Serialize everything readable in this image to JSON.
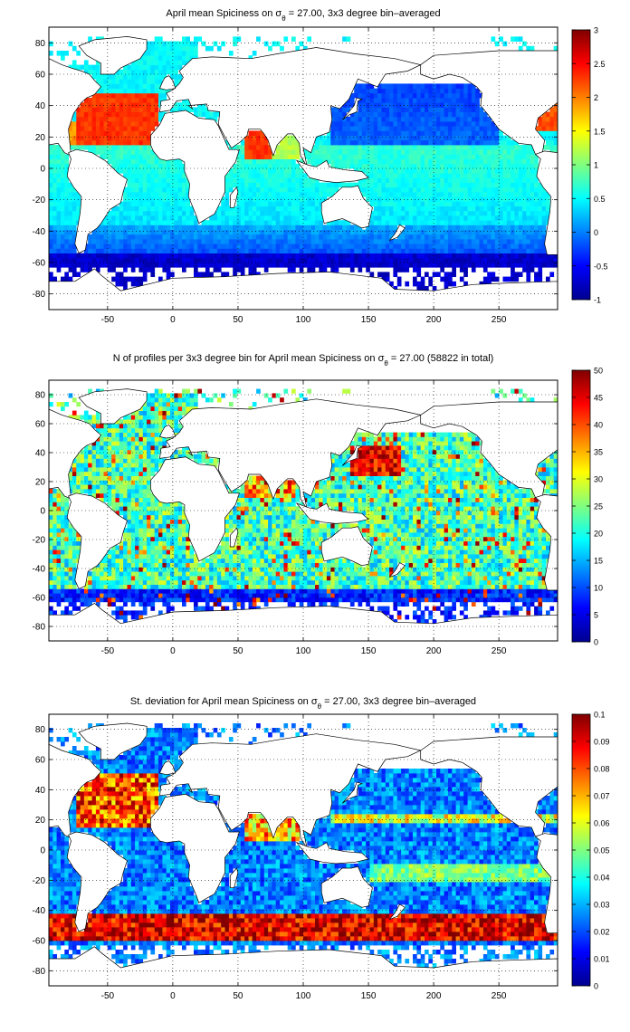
{
  "figure": {
    "background": "#ffffff",
    "land_color": "#ffffff",
    "coast_color": "#000000"
  },
  "chart_data": [
    {
      "type": "heatmap",
      "title_prefix": "April mean Spiciness on σ",
      "title_sub": "θ",
      "title_suffix": " = 27.00, 3x3 degree bin–averaged",
      "xlim": [
        -95,
        295
      ],
      "ylim": [
        -90,
        90
      ],
      "xticks": [
        -50,
        0,
        50,
        100,
        150,
        200,
        250
      ],
      "yticks": [
        -80,
        -60,
        -40,
        -20,
        0,
        20,
        40,
        60,
        80
      ],
      "grid": true,
      "grid_style": "dotted",
      "bin_deg": 3,
      "colormap": "jet",
      "clim": [
        -1,
        3
      ],
      "colorbar_ticks": [
        -1,
        -0.5,
        0,
        0.5,
        1,
        1.5,
        2,
        2.5,
        3
      ],
      "field": "spiciness_mean",
      "qualitative_pattern": "North Atlantic subtropical gyre ~2-2.6 (orange-red); Arabian Sea/Red Sea outflow ~2.2-2.5; North Pacific ~-0.2 to 0; tropics ~0.4-0.8; Southern Ocean south of 55S ~-0.6 to -0.9"
    },
    {
      "type": "heatmap",
      "title_prefix": "N of profiles per 3x3 degree bin for April mean Spiciness on σ",
      "title_sub": "θ",
      "title_suffix": " = 27.00 (58822 in total)",
      "xlim": [
        -95,
        295
      ],
      "ylim": [
        -90,
        90
      ],
      "xticks": [
        -50,
        0,
        50,
        100,
        150,
        200,
        250
      ],
      "yticks": [
        -80,
        -60,
        -40,
        -20,
        0,
        20,
        40,
        60,
        80
      ],
      "grid": true,
      "grid_style": "dotted",
      "bin_deg": 3,
      "colormap": "jet",
      "clim": [
        0,
        50
      ],
      "colorbar_ticks": [
        0,
        5,
        10,
        15,
        20,
        25,
        30,
        35,
        40,
        45,
        50
      ],
      "field": "profile_count",
      "total_profiles": 58822,
      "qualitative_pattern": "Counts mostly 10-30; Kuroshio extension region 45-50 (dark red); Arabian Sea and Bay of Bengal high; Southern Ocean low 5-10"
    },
    {
      "type": "heatmap",
      "title_prefix": "St. deviation for April mean Spiciness on σ",
      "title_sub": "θ",
      "title_suffix": " = 27.00, 3x3 degree bin–averaged",
      "xlim": [
        -95,
        295
      ],
      "ylim": [
        -90,
        90
      ],
      "xticks": [
        -50,
        0,
        50,
        100,
        150,
        200,
        250
      ],
      "yticks": [
        -80,
        -60,
        -40,
        -20,
        0,
        20,
        40,
        60,
        80
      ],
      "grid": true,
      "grid_style": "dotted",
      "bin_deg": 3,
      "colormap": "jet",
      "clim": [
        0,
        0.1
      ],
      "colorbar_ticks": [
        0,
        0.01,
        0.02,
        0.03,
        0.04,
        0.05,
        0.06,
        0.07,
        0.08,
        0.09,
        0.1
      ],
      "field": "spiciness_std",
      "qualitative_pattern": "Antarctic Circumpolar Current band ~45-58S >0.08 (dark red); North Atlantic high; Pacific interior low ~0.01-0.02; bands near 20N and 10-20S ~0.04-0.06"
    }
  ]
}
